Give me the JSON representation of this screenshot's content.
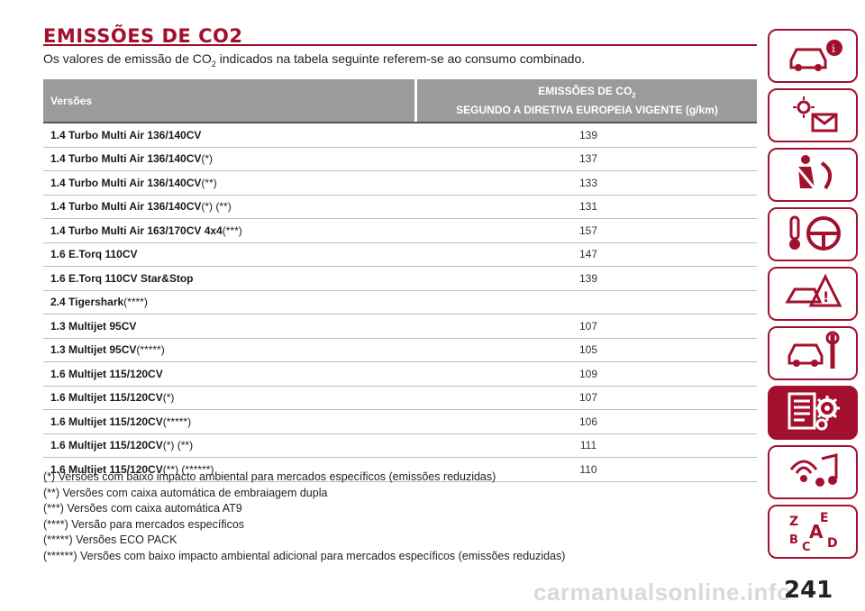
{
  "title": "EMISSÕES DE CO2",
  "intro": {
    "before": "Os valores de emissão de CO",
    "sub": "2",
    "after": " indicados na tabela seguinte referem-se ao consumo combinado."
  },
  "table": {
    "col1_header": "Versões",
    "col2_header_line1": "EMISSÕES DE CO",
    "col2_header_sub": "2",
    "col2_header_line2": "SEGUNDO A DIRETIVA EUROPEIA VIGENTE (g/km)",
    "rows": [
      {
        "version": "1.4 Turbo Multi Air 136/140CV",
        "marks": "",
        "value": "139"
      },
      {
        "version": "1.4 Turbo Multi Air 136/140CV",
        "marks": "(*)",
        "value": "137"
      },
      {
        "version": "1.4 Turbo Multi Air 136/140CV",
        "marks": "(**)",
        "value": "133"
      },
      {
        "version": "1.4 Turbo Multi Air 136/140CV",
        "marks": "(*) (**)",
        "value": "131"
      },
      {
        "version": "1.4 Turbo Multi Air 163/170CV 4x4",
        "marks": "(***)",
        "value": "157"
      },
      {
        "version": "1.6 E.Torq 110CV",
        "marks": "",
        "value": "147"
      },
      {
        "version": "1.6 E.Torq 110CV Star&Stop",
        "marks": "",
        "value": "139"
      },
      {
        "version": "2.4 Tigershark",
        "marks": "(****)",
        "value": ""
      },
      {
        "version": "1.3 Multijet 95CV",
        "marks": "",
        "value": "107"
      },
      {
        "version": "1.3 Multijet 95CV",
        "marks": "(*****)",
        "value": "105"
      },
      {
        "version": "1.6 Multijet 115/120CV",
        "marks": "",
        "value": "109"
      },
      {
        "version": "1.6 Multijet 115/120CV",
        "marks": "(*)",
        "value": "107"
      },
      {
        "version": "1.6 Multijet 115/120CV",
        "marks": "(*****)",
        "value": "106"
      },
      {
        "version": "1.6 Multijet 115/120CV",
        "marks": "(*) (**)",
        "value": "111"
      },
      {
        "version": "1.6 Multijet 115/120CV",
        "marks": "(**) (******)",
        "value": "110"
      }
    ]
  },
  "notes": [
    "(*) Versões com baixo impacto ambiental para mercados específicos (emissões reduzidas)",
    "(**) Versões com caixa automática de embraiagem dupla",
    "(***) Versões com caixa automática AT9",
    "(****) Versão para mercados específicos",
    "(*****) Versões ECO PACK",
    "(******) Versões com baixo impacto ambiental adicional para mercados específicos (emissões reduzidas)"
  ],
  "sidebar_tabs": [
    {
      "icon": "car-info-icon",
      "active": false
    },
    {
      "icon": "dashboard-lights-icon",
      "active": false
    },
    {
      "icon": "seatbelt-airbag-icon",
      "active": false
    },
    {
      "icon": "key-steering-wheel-icon",
      "active": false
    },
    {
      "icon": "warning-triangle-car-icon",
      "active": false
    },
    {
      "icon": "car-maintenance-icon",
      "active": false
    },
    {
      "icon": "technical-data-gears-icon",
      "active": true
    },
    {
      "icon": "multimedia-icon",
      "active": false
    },
    {
      "icon": "alphabetical-index-icon",
      "active": false
    }
  ],
  "page_number": "241",
  "watermark": "carmanualsonline.info",
  "colors": {
    "accent": "#a3102e",
    "header_bg": "#9b9b9b"
  }
}
